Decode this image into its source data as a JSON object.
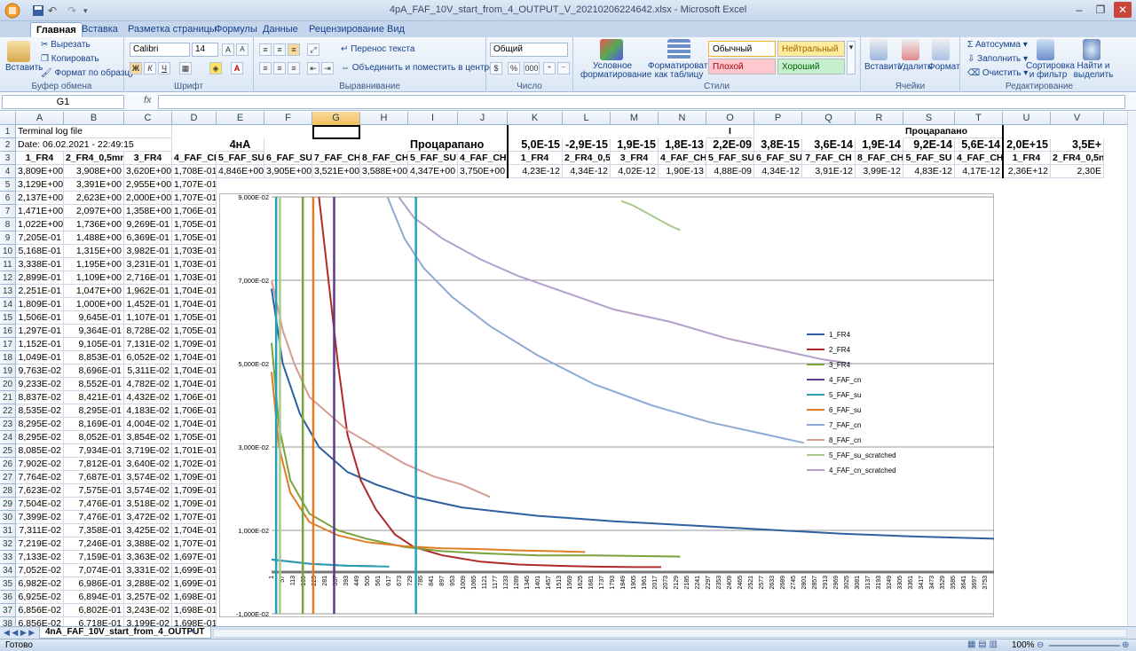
{
  "window": {
    "title": "4pA_FAF_10V_start_from_4_OUTPUT_V_20210206224642.xlsx - Microsoft Excel",
    "minimize": "–",
    "maximize": "❐",
    "close": "✕"
  },
  "tabs": [
    "Главная",
    "Вставка",
    "Разметка страницы",
    "Формулы",
    "Данные",
    "Рецензирование",
    "Вид"
  ],
  "ribbon": {
    "clipboard": {
      "paste": "Вставить",
      "cut": "Вырезать",
      "copy": "Копировать",
      "format_painter": "Формат по образцу",
      "label": "Буфер обмена"
    },
    "font": {
      "name": "Calibri",
      "size": "14",
      "label": "Шрифт",
      "bold": "Ж",
      "italic": "К",
      "underline": "Ч"
    },
    "alignment": {
      "wrap": "Перенос текста",
      "merge": "Объединить и поместить в центре",
      "label": "Выравнивание"
    },
    "number": {
      "format": "Общий",
      "label": "Число",
      "percent": "%",
      "thousands": "000"
    },
    "styles": {
      "cond_format": "Условное форматирование",
      "format_table": "Форматировать как таблицу",
      "normal": "Обычный",
      "neutral": "Нейтральный",
      "bad": "Плохой",
      "good": "Хороший",
      "label": "Стили"
    },
    "cells": {
      "insert": "Вставить",
      "delete": "Удалить",
      "format": "Формат",
      "label": "Ячейки"
    },
    "editing": {
      "autosum": "Автосумма",
      "fill": "Заполнить",
      "clear": "Очистить",
      "sort": "Сортировка и фильтр",
      "find": "Найти и выделить",
      "label": "Редактирование"
    }
  },
  "formula_bar": {
    "name_box": "G1",
    "fx": "fx",
    "value": ""
  },
  "sheet": {
    "columns": [
      "A",
      "B",
      "C",
      "D",
      "E",
      "F",
      "G",
      "H",
      "I",
      "J",
      "K",
      "L",
      "M",
      "N",
      "O",
      "P",
      "Q",
      "R",
      "S",
      "T",
      "U",
      "V"
    ],
    "selected_column": "G",
    "row_numbers": [
      "1",
      "2",
      "3",
      "4",
      "5",
      "6",
      "7",
      "8",
      "9",
      "10",
      "11",
      "12",
      "13",
      "14",
      "15",
      "16",
      "17",
      "18",
      "19",
      "20",
      "21",
      "22",
      "23",
      "24",
      "25",
      "26",
      "27",
      "28",
      "29",
      "30",
      "31",
      "32",
      "33",
      "34",
      "35",
      "36",
      "37",
      "38"
    ],
    "row1": {
      "A": "Terminal log file",
      "O": "I",
      "S": "Процарапано"
    },
    "row2": {
      "A": "Date: 06.02.2021 - 22:49:15",
      "E": "4нА",
      "I": "Процарапано",
      "K": "5,0E-15",
      "L": "-2,9E-15",
      "M": "1,9E-15",
      "N": "1,8E-13",
      "O": "2,2E-09",
      "P": "3,8E-15",
      "Q": "3,6E-14",
      "R": "1,9E-14",
      "S": "9,2E-14",
      "T": "5,6E-14",
      "U": "2,0E+15",
      "V": "3,5E+"
    },
    "row3": {
      "A": "1_FR4",
      "B": "2_FR4_0,5mm",
      "C": "3_FR4",
      "D": "4_FAF_CH",
      "E": "5_FAF_SU",
      "F": "6_FAF_SU",
      "G": "7_FAF_CH",
      "H": "8_FAF_CH",
      "I": "5_FAF_SU",
      "J": "4_FAF_CH",
      "K": "1_FR4",
      "L": "2_FR4_0,5mm",
      "M": "3_FR4",
      "N": "4_FAF_CH",
      "O": "5_FAF_SU",
      "P": "6_FAF_SU",
      "Q": "7_FAF_CH",
      "R": "8_FAF_CH",
      "S": "5_FAF_SU",
      "T": "4_FAF_CH",
      "U": "1_FR4",
      "V": "2_FR4_0,5n"
    },
    "row4": {
      "A": "3,809E+00",
      "B": "3,908E+00",
      "C": "3,620E+00",
      "D": "1,708E-01",
      "E": "4,846E+00",
      "F": "3,905E+00",
      "G": "3,521E+00",
      "H": "3,588E+00",
      "I": "4,347E+00",
      "J": "3,750E+00",
      "K": "4,23E-12",
      "L": "4,34E-12",
      "M": "4,02E-12",
      "N": "1,90E-13",
      "O": "4,88E-09",
      "P": "4,34E-12",
      "Q": "3,91E-12",
      "R": "3,99E-12",
      "S": "4,83E-12",
      "T": "4,17E-12",
      "U": "2,36E+12",
      "V": "2,30E"
    },
    "colA": [
      "3,129E+00",
      "2,137E+00",
      "1,471E+00",
      "1,022E+00",
      "7,205E-01",
      "5,168E-01",
      "3,338E-01",
      "2,899E-01",
      "2,251E-01",
      "1,809E-01",
      "1,506E-01",
      "1,297E-01",
      "1,152E-01",
      "1,049E-01",
      "9,763E-02",
      "9,233E-02",
      "8,837E-02",
      "8,535E-02",
      "8,295E-02",
      "8,295E-02",
      "8,085E-02",
      "7,902E-02",
      "7,764E-02",
      "7,623E-02",
      "7,504E-02",
      "7,399E-02",
      "7,311E-02",
      "7,219E-02",
      "7,133E-02",
      "7,052E-02",
      "6,982E-02",
      "6,925E-02",
      "6,856E-02",
      "6,856E-02"
    ],
    "colB": [
      "3,391E+00",
      "2,623E+00",
      "2,097E+00",
      "1,736E+00",
      "1,488E+00",
      "1,315E+00",
      "1,195E+00",
      "1,109E+00",
      "1,047E+00",
      "1,000E+00",
      "9,645E-01",
      "9,364E-01",
      "9,105E-01",
      "8,853E-01",
      "8,696E-01",
      "8,552E-01",
      "8,421E-01",
      "8,295E-01",
      "8,169E-01",
      "8,052E-01",
      "7,934E-01",
      "7,812E-01",
      "7,687E-01",
      "7,575E-01",
      "7,476E-01",
      "7,476E-01",
      "7,358E-01",
      "7,246E-01",
      "7,159E-01",
      "7,074E-01",
      "6,986E-01",
      "6,894E-01",
      "6,802E-01",
      "6,718E-01"
    ],
    "colC": [
      "2,955E+00",
      "2,000E+00",
      "1,358E+00",
      "9,269E-01",
      "6,369E-01",
      "3,982E-01",
      "3,231E-01",
      "2,716E-01",
      "1,962E-01",
      "1,452E-01",
      "1,107E-01",
      "8,728E-02",
      "7,131E-02",
      "6,052E-02",
      "5,311E-02",
      "4,782E-02",
      "4,432E-02",
      "4,183E-02",
      "4,004E-02",
      "3,854E-02",
      "3,719E-02",
      "3,640E-02",
      "3,574E-02",
      "3,574E-02",
      "3,518E-02",
      "3,472E-02",
      "3,425E-02",
      "3,388E-02",
      "3,363E-02",
      "3,331E-02",
      "3,288E-02",
      "3,257E-02",
      "3,243E-02",
      "3,199E-02"
    ],
    "colD": [
      "1,707E-01",
      "1,707E-01",
      "1,706E-01",
      "1,705E-01",
      "1,705E-01",
      "1,703E-01",
      "1,703E-01",
      "1,703E-01",
      "1,704E-01",
      "1,704E-01",
      "1,705E-01",
      "1,705E-01",
      "1,709E-01",
      "1,704E-01",
      "1,704E-01",
      "1,704E-01",
      "1,706E-01",
      "1,706E-01",
      "1,704E-01",
      "1,705E-01",
      "1,701E-01",
      "1,702E-01",
      "1,709E-01",
      "1,709E-01",
      "1,709E-01",
      "1,707E-01",
      "1,704E-01",
      "1,707E-01",
      "1,697E-01",
      "1,699E-01",
      "1,699E-01",
      "1,698E-01",
      "1,698E-01",
      "1,698E-01"
    ]
  },
  "sheet_tab": "4nA_FAF_10V_start_from_4_OUTPUT",
  "status": {
    "ready": "Готово",
    "zoom": "100%"
  },
  "chart_data": {
    "type": "line",
    "ylim": [
      -0.01,
      0.09
    ],
    "y_ticks": [
      "9,000E-02",
      "7,000E-02",
      "5,000E-02",
      "3,000E-02",
      "1,000E-02",
      "-1,000E-02"
    ],
    "y_tick_values": [
      0.09,
      0.07,
      0.05,
      0.03,
      0.01,
      -0.01
    ],
    "x_ticks": [
      "1",
      "57",
      "113",
      "169",
      "225",
      "281",
      "337",
      "393",
      "449",
      "505",
      "561",
      "617",
      "673",
      "729",
      "785",
      "841",
      "897",
      "953",
      "1009",
      "1065",
      "1121",
      "1177",
      "1233",
      "1289",
      "1345",
      "1401",
      "1457",
      "1513",
      "1569",
      "1625",
      "1681",
      "1737",
      "1793",
      "1849",
      "1905",
      "1961",
      "2017",
      "2073",
      "2129",
      "2185",
      "2241",
      "2297",
      "2353",
      "2409",
      "2465",
      "2521",
      "2577",
      "2633",
      "2689",
      "2745",
      "2801",
      "2857",
      "2913",
      "2969",
      "3025",
      "3081",
      "3137",
      "3193",
      "3249",
      "3305",
      "3361",
      "3417",
      "3473",
      "3529",
      "3585",
      "3641",
      "3697",
      "3753"
    ],
    "xlim": [
      1,
      3800
    ],
    "legend_position": "right",
    "series": [
      {
        "name": "1_FR4",
        "color": "#2e5f9e",
        "points": [
          [
            1,
            0.068
          ],
          [
            60,
            0.05
          ],
          [
            150,
            0.038
          ],
          [
            250,
            0.03
          ],
          [
            400,
            0.024
          ],
          [
            550,
            0.021
          ],
          [
            750,
            0.018
          ],
          [
            1000,
            0.0155
          ],
          [
            1400,
            0.0135
          ],
          [
            1800,
            0.0122
          ],
          [
            2200,
            0.0112
          ],
          [
            2600,
            0.0102
          ],
          [
            3000,
            0.0092
          ],
          [
            3400,
            0.0085
          ],
          [
            3800,
            0.008
          ]
        ]
      },
      {
        "name": "2_FR4",
        "color": "#b02a2a",
        "points": [
          [
            250,
            0.09
          ],
          [
            300,
            0.07
          ],
          [
            350,
            0.05
          ],
          [
            400,
            0.033
          ],
          [
            470,
            0.022
          ],
          [
            550,
            0.015
          ],
          [
            650,
            0.009
          ],
          [
            750,
            0.006
          ],
          [
            900,
            0.004
          ],
          [
            1100,
            0.0025
          ],
          [
            1300,
            0.0018
          ],
          [
            1500,
            0.0015
          ],
          [
            1700,
            0.0013
          ],
          [
            1900,
            0.0012
          ],
          [
            2050,
            0.0012
          ]
        ]
      },
      {
        "name": "3_FR4",
        "color": "#7aa33b",
        "points": [
          [
            1,
            0.055
          ],
          [
            40,
            0.035
          ],
          [
            100,
            0.022
          ],
          [
            200,
            0.014
          ],
          [
            350,
            0.01
          ],
          [
            500,
            0.008
          ],
          [
            700,
            0.006
          ],
          [
            900,
            0.005
          ],
          [
            1100,
            0.0045
          ],
          [
            1400,
            0.004
          ],
          [
            1700,
            0.004
          ],
          [
            2000,
            0.0038
          ],
          [
            2150,
            0.0037
          ]
        ]
      },
      {
        "name": "4_FAF_cn",
        "color": "#5b3c88",
        "points": [
          [
            1,
            0.003
          ],
          [
            200,
            0.002
          ],
          [
            400,
            0.0015
          ],
          [
            550,
            0.0014
          ]
        ]
      },
      {
        "name": "5_FAF_su",
        "color": "#27a0b5",
        "points": [
          [
            1,
            0.003
          ],
          [
            200,
            0.002
          ],
          [
            400,
            0.0015
          ],
          [
            620,
            0.0013
          ]
        ]
      },
      {
        "name": "6_FAF_su",
        "color": "#e07b26",
        "points": [
          [
            1,
            0.048
          ],
          [
            40,
            0.03
          ],
          [
            100,
            0.019
          ],
          [
            200,
            0.012
          ],
          [
            350,
            0.0088
          ],
          [
            500,
            0.0072
          ],
          [
            700,
            0.0062
          ],
          [
            900,
            0.0057
          ],
          [
            1100,
            0.0055
          ],
          [
            1300,
            0.0052
          ],
          [
            1500,
            0.005
          ],
          [
            1650,
            0.0048
          ]
        ]
      },
      {
        "name": "7_FAF_cn",
        "color": "#8fa9d6",
        "points": [
          [
            610,
            0.09
          ],
          [
            700,
            0.08
          ],
          [
            800,
            0.073
          ],
          [
            950,
            0.066
          ],
          [
            1150,
            0.059
          ],
          [
            1400,
            0.052
          ],
          [
            1700,
            0.045
          ],
          [
            2000,
            0.04
          ],
          [
            2300,
            0.036
          ],
          [
            2600,
            0.033
          ],
          [
            2800,
            0.031
          ]
        ]
      },
      {
        "name": "8_FAF_cn",
        "color": "#d89a94",
        "points": [
          [
            1,
            0.07
          ],
          [
            60,
            0.058
          ],
          [
            120,
            0.05
          ],
          [
            200,
            0.042
          ],
          [
            300,
            0.038
          ],
          [
            400,
            0.034
          ],
          [
            550,
            0.03
          ],
          [
            700,
            0.026
          ],
          [
            850,
            0.023
          ],
          [
            1000,
            0.021
          ],
          [
            1100,
            0.019
          ],
          [
            1150,
            0.018
          ]
        ]
      },
      {
        "name": "5_FAF_su_scratched",
        "color": "#a8c98a",
        "points": [
          [
            1840,
            0.089
          ],
          [
            1900,
            0.088
          ],
          [
            2000,
            0.0855
          ],
          [
            2100,
            0.083
          ],
          [
            2150,
            0.082
          ]
        ]
      },
      {
        "name": "4_FAF_cn_scratched",
        "color": "#b4a0c8",
        "points": [
          [
            670,
            0.09
          ],
          [
            750,
            0.085
          ],
          [
            900,
            0.08
          ],
          [
            1100,
            0.075
          ],
          [
            1300,
            0.071
          ],
          [
            1550,
            0.067
          ],
          [
            1800,
            0.063
          ],
          [
            2100,
            0.06
          ],
          [
            2400,
            0.056
          ],
          [
            2700,
            0.053
          ],
          [
            2900,
            0.051
          ],
          [
            3050,
            0.05
          ]
        ]
      }
    ]
  }
}
